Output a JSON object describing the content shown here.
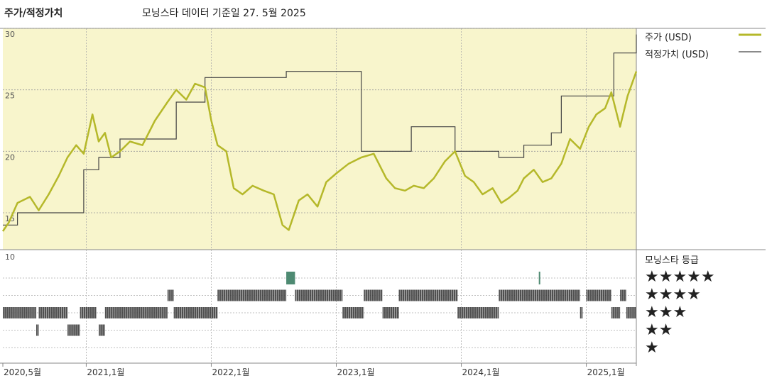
{
  "header": {
    "title": "주가/적정가치",
    "subtitle": "모닝스타 데이터 기준일 27. 5월 2025"
  },
  "legend": {
    "price": "주가 (USD)",
    "fair": "적정가치 (USD)"
  },
  "rating_section": {
    "title": "모닝스타 등급",
    "ymax_label": "10",
    "stars": [
      "★★★★★",
      "★★★★",
      "★★★",
      "★★",
      "★"
    ]
  },
  "colors": {
    "price": "#b5b82a",
    "fair": "#444444",
    "price_bg": "#f8f5cc",
    "rating_bar": "#333333",
    "rating_highlight": "#4e8a72"
  },
  "chart_data": {
    "type": "line",
    "x_range": [
      "2020-05",
      "2025-05"
    ],
    "y_range": [
      12,
      30
    ],
    "y_ticks": [
      15,
      20,
      25,
      30
    ],
    "x_ticks": [
      "2020,5월",
      "2021,1월",
      "2022,1월",
      "2023,1월",
      "2024,1월",
      "2025,1월"
    ],
    "x_tick_times": [
      2020.333,
      2021.0,
      2022.0,
      2023.0,
      2024.0,
      2025.0
    ],
    "series": [
      {
        "name": "주가 (USD)",
        "x": [
          2020.333,
          2020.38,
          2020.45,
          2020.55,
          2020.62,
          2020.7,
          2020.78,
          2020.85,
          2020.92,
          2020.98,
          2021.05,
          2021.1,
          2021.15,
          2021.2,
          2021.27,
          2021.35,
          2021.45,
          2021.55,
          2021.65,
          2021.72,
          2021.8,
          2021.87,
          2021.95,
          2022.0,
          2022.05,
          2022.12,
          2022.18,
          2022.25,
          2022.33,
          2022.42,
          2022.5,
          2022.57,
          2022.62,
          2022.7,
          2022.77,
          2022.85,
          2022.92,
          2023.0,
          2023.1,
          2023.2,
          2023.3,
          2023.4,
          2023.47,
          2023.55,
          2023.62,
          2023.7,
          2023.78,
          2023.87,
          2023.95,
          2024.03,
          2024.1,
          2024.17,
          2024.25,
          2024.32,
          2024.38,
          2024.45,
          2024.5,
          2024.58,
          2024.65,
          2024.72,
          2024.8,
          2024.87,
          2024.95,
          2025.02,
          2025.08,
          2025.15,
          2025.2,
          2025.27,
          2025.33,
          2025.4
        ],
        "values": [
          13.5,
          14.2,
          15.8,
          16.3,
          15.2,
          16.5,
          18.0,
          19.5,
          20.5,
          19.8,
          23.0,
          20.8,
          21.5,
          19.5,
          20.0,
          20.8,
          20.5,
          22.5,
          24.0,
          25.0,
          24.2,
          25.5,
          25.2,
          22.5,
          20.5,
          20.0,
          17.0,
          16.5,
          17.2,
          16.8,
          16.5,
          14.0,
          13.6,
          16.0,
          16.5,
          15.5,
          17.5,
          18.2,
          19.0,
          19.5,
          19.8,
          17.8,
          17.0,
          16.8,
          17.2,
          17.0,
          17.8,
          19.2,
          20.0,
          18.0,
          17.5,
          16.5,
          17.0,
          15.8,
          16.2,
          16.8,
          17.8,
          18.5,
          17.5,
          17.8,
          19.0,
          21.0,
          20.2,
          22.0,
          23.0,
          23.5,
          24.8,
          22.0,
          24.5,
          26.5
        ]
      },
      {
        "name": "적정가치 (USD)",
        "type": "step",
        "x": [
          2020.333,
          2020.45,
          2020.62,
          2020.98,
          2021.1,
          2021.27,
          2021.72,
          2021.95,
          2022.6,
          2023.2,
          2023.6,
          2023.95,
          2024.3,
          2024.5,
          2024.72,
          2024.8,
          2025.0,
          2025.22,
          2025.38,
          2025.4
        ],
        "values": [
          14.0,
          15.0,
          15.0,
          18.5,
          19.5,
          21.0,
          24.0,
          26.0,
          26.5,
          20.0,
          22.0,
          20.0,
          19.5,
          20.5,
          21.5,
          24.5,
          24.5,
          28.0,
          28.0,
          29.5
        ]
      }
    ],
    "ratings": {
      "rows": [
        5,
        4,
        3,
        2,
        1
      ],
      "segments": [
        {
          "stars": 3,
          "x": [
            2020.333,
            2020.6
          ]
        },
        {
          "stars": 3,
          "x": [
            2020.62,
            2020.85
          ]
        },
        {
          "stars": 3,
          "x": [
            2020.95,
            2021.08
          ]
        },
        {
          "stars": 3,
          "x": [
            2021.15,
            2021.65
          ]
        },
        {
          "stars": 3,
          "x": [
            2021.7,
            2022.05
          ]
        },
        {
          "stars": 2,
          "x": [
            2020.6,
            2020.62
          ]
        },
        {
          "stars": 2,
          "x": [
            2020.85,
            2020.95
          ]
        },
        {
          "stars": 2,
          "x": [
            2021.1,
            2021.15
          ]
        },
        {
          "stars": 4,
          "x": [
            2021.65,
            2021.7
          ]
        },
        {
          "stars": 4,
          "x": [
            2022.05,
            2022.6
          ]
        },
        {
          "stars": 5,
          "x": [
            2022.6,
            2022.67
          ],
          "highlight": true
        },
        {
          "stars": 4,
          "x": [
            2022.67,
            2023.05
          ]
        },
        {
          "stars": 3,
          "x": [
            2023.05,
            2023.22
          ]
        },
        {
          "stars": 4,
          "x": [
            2023.22,
            2023.37
          ]
        },
        {
          "stars": 3,
          "x": [
            2023.37,
            2023.5
          ]
        },
        {
          "stars": 4,
          "x": [
            2023.5,
            2023.97
          ]
        },
        {
          "stars": 3,
          "x": [
            2023.97,
            2024.3
          ]
        },
        {
          "stars": 4,
          "x": [
            2024.3,
            2024.95
          ]
        },
        {
          "stars": 5,
          "x": [
            2024.62,
            2024.63
          ],
          "highlight": true
        },
        {
          "stars": 3,
          "x": [
            2024.95,
            2024.97
          ]
        },
        {
          "stars": 4,
          "x": [
            2025.0,
            2025.2
          ]
        },
        {
          "stars": 3,
          "x": [
            2025.2,
            2025.27
          ]
        },
        {
          "stars": 4,
          "x": [
            2025.27,
            2025.32
          ]
        },
        {
          "stars": 3,
          "x": [
            2025.32,
            2025.4
          ]
        }
      ]
    }
  }
}
